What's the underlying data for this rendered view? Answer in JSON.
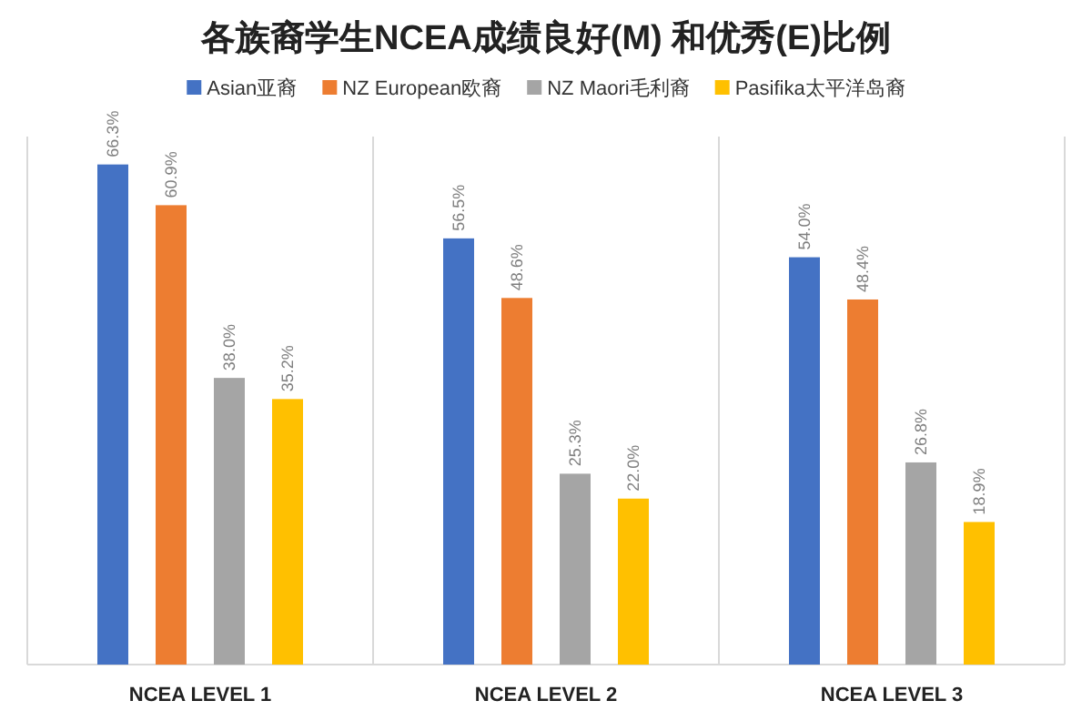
{
  "chart_data": {
    "type": "bar",
    "title": "各族裔学生NCEA成绩良好(M) 和优秀(E)比例",
    "categories": [
      "NCEA LEVEL 1",
      "NCEA LEVEL 2",
      "NCEA LEVEL 3"
    ],
    "ylim": [
      0,
      70
    ],
    "legend": "top",
    "series": [
      {
        "name": "Asian亚裔",
        "color": "#4472c4",
        "values": [
          66.3,
          56.5,
          54.0
        ],
        "value_labels": [
          "66.3%",
          "56.5%",
          "54.0%"
        ]
      },
      {
        "name": "NZ European欧裔",
        "color": "#ed7d31",
        "values": [
          60.9,
          48.6,
          48.4
        ],
        "value_labels": [
          "60.9%",
          "48.6%",
          "48.4%"
        ]
      },
      {
        "name": "NZ Maori毛利裔",
        "color": "#a5a5a5",
        "values": [
          38.0,
          25.3,
          26.8
        ],
        "value_labels": [
          "38.0%",
          "25.3%",
          "26.8%"
        ]
      },
      {
        "name": "Pasifika太平洋岛裔",
        "color": "#ffc000",
        "values": [
          35.2,
          22.0,
          18.9
        ],
        "value_labels": [
          "35.2%",
          "22.0%",
          "18.9%"
        ]
      }
    ]
  }
}
